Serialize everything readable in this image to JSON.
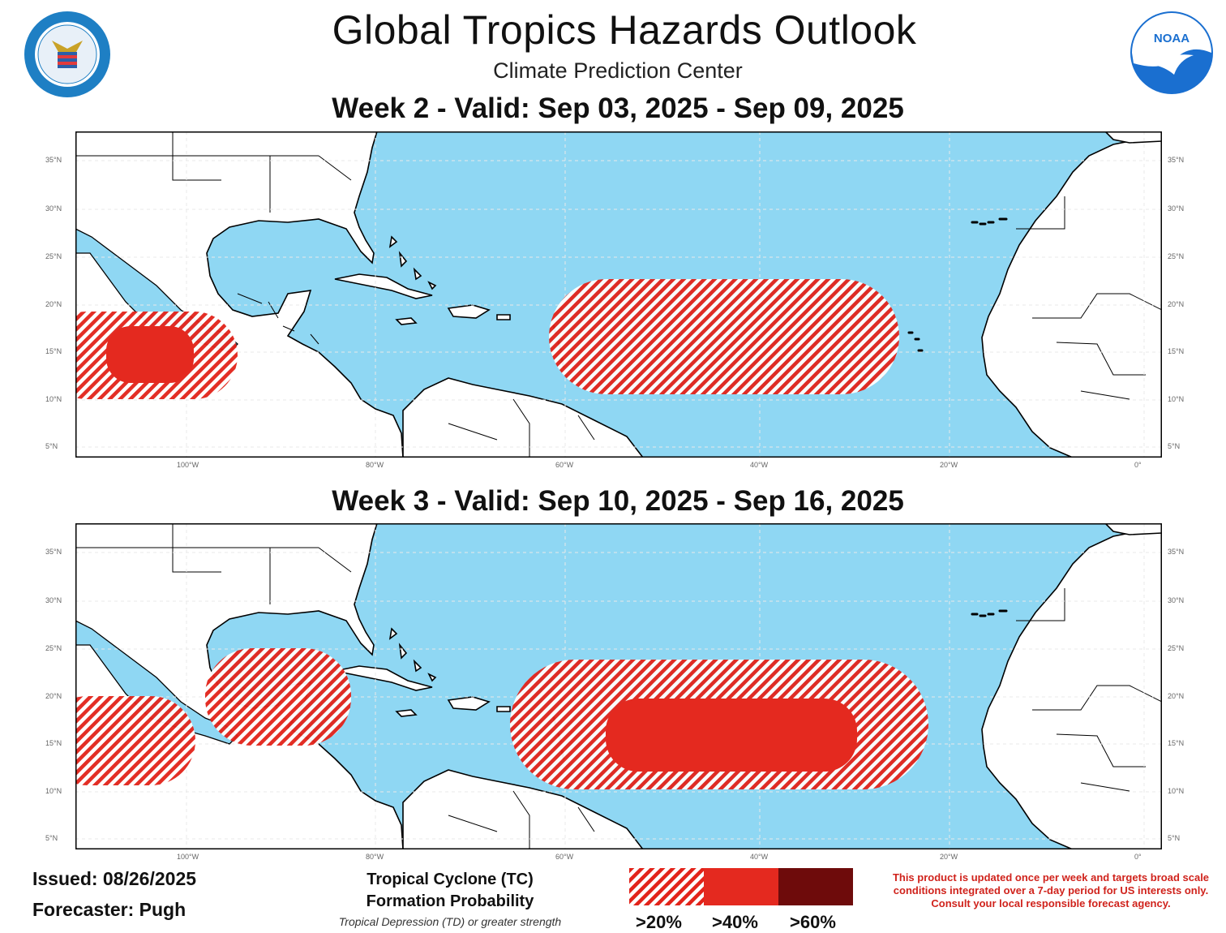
{
  "header": {
    "title": "Global Tropics Hazards Outlook",
    "subtitle": "Climate Prediction Center"
  },
  "week2": {
    "title": "Week 2 - Valid: Sep 03, 2025 - Sep 09, 2025"
  },
  "week3": {
    "title": "Week 3 - Valid: Sep 10, 2025 - Sep 16, 2025"
  },
  "axes": {
    "lat_labels": [
      "35°N",
      "30°N",
      "25°N",
      "20°N",
      "15°N",
      "10°N",
      "5°N"
    ],
    "lon_labels": [
      "100°W",
      "80°W",
      "60°W",
      "40°W",
      "20°W",
      "0°"
    ]
  },
  "footer": {
    "issued": "Issued: 08/26/2025",
    "forecaster": "Forecaster: Pugh",
    "legend_title_line1": "Tropical Cyclone (TC)",
    "legend_title_line2": "Formation Probability",
    "legend_note": "Tropical Depression (TD) or greater strength",
    "legend_levels": [
      ">20%",
      ">40%",
      ">60%"
    ],
    "disclaimer": "This product is updated once per week and targets broad scale conditions integrated over a 7-day period for US interests only. Consult your local responsible forecast agency.",
    "noaa_logo_text": "NOAA"
  },
  "colors": {
    "ocean": "#8fd7f3",
    "land": "#ffffff",
    "hatch_red": "#e2231a",
    "level_40": "#e4291f",
    "level_60": "#6e0b0b",
    "disclaimer_red": "#d0231c"
  }
}
